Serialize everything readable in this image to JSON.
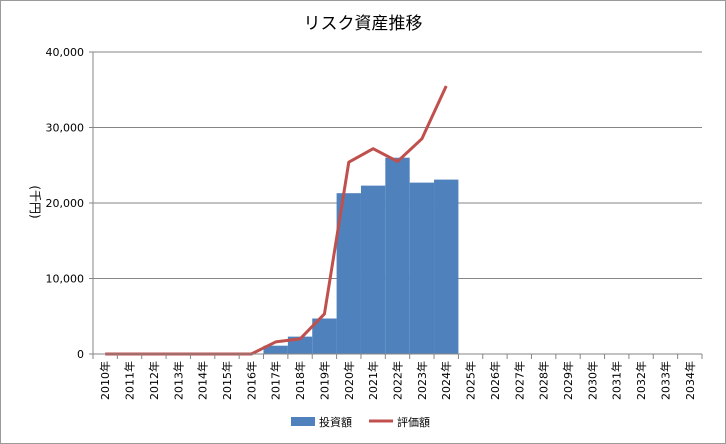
{
  "chart_data": {
    "type": "bar",
    "title": "リスク資産推移",
    "ylabel": "(千円)",
    "xlabel": "",
    "ylim": [
      0,
      40000
    ],
    "yticks": [
      0,
      10000,
      20000,
      30000,
      40000
    ],
    "ytick_labels": [
      "0",
      "10,000",
      "20,000",
      "30,000",
      "40,000"
    ],
    "grid": "horizontal",
    "legend_position": "bottom",
    "categories": [
      "2010年",
      "2011年",
      "2012年",
      "2013年",
      "2014年",
      "2015年",
      "2016年",
      "2017年",
      "2018年",
      "2019年",
      "2020年",
      "2021年",
      "2022年",
      "2023年",
      "2024年",
      "2025年",
      "2026年",
      "2027年",
      "2028年",
      "2029年",
      "2030年",
      "2031年",
      "2032年",
      "2033年",
      "2034年"
    ],
    "series": [
      {
        "name": "投資額",
        "type": "bar",
        "color": "#4f81bd",
        "values": [
          0,
          0,
          0,
          0,
          0,
          0,
          0,
          1100,
          2300,
          4700,
          21300,
          22300,
          26000,
          22700,
          23100,
          null,
          null,
          null,
          null,
          null,
          null,
          null,
          null,
          null,
          null
        ]
      },
      {
        "name": "評価額",
        "type": "line",
        "color": "#c0504d",
        "values": [
          0,
          0,
          0,
          0,
          0,
          0,
          0,
          1600,
          2000,
          5300,
          25400,
          27200,
          25500,
          28500,
          35500,
          null,
          null,
          null,
          null,
          null,
          null,
          null,
          null,
          null,
          null
        ]
      }
    ]
  }
}
